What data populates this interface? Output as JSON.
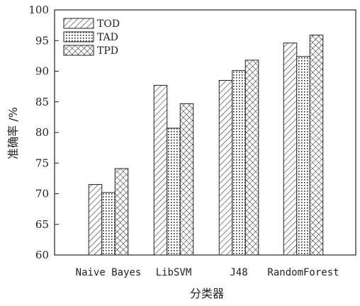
{
  "chart_data": {
    "type": "bar",
    "title": "",
    "xlabel": "分类器",
    "ylabel": "准确率 /%",
    "categories": [
      "Naive Bayes",
      "LibSVM",
      "J48",
      "RandomForest"
    ],
    "series": [
      {
        "name": "TOD",
        "values": [
          71.5,
          87.7,
          88.5,
          94.6
        ],
        "pattern": "diagonal-hatch"
      },
      {
        "name": "TAD",
        "values": [
          70.2,
          80.7,
          90.1,
          92.4
        ],
        "pattern": "dots"
      },
      {
        "name": "TPD",
        "values": [
          74.1,
          84.7,
          91.8,
          95.9
        ],
        "pattern": "crosshatch"
      }
    ],
    "ylim": [
      60,
      100
    ],
    "yticks": [
      60,
      65,
      70,
      75,
      80,
      85,
      90,
      95,
      100
    ],
    "grid": false,
    "legend_position": "top-left",
    "colors": {
      "stroke": "#222222",
      "background": "#ffffff"
    }
  }
}
